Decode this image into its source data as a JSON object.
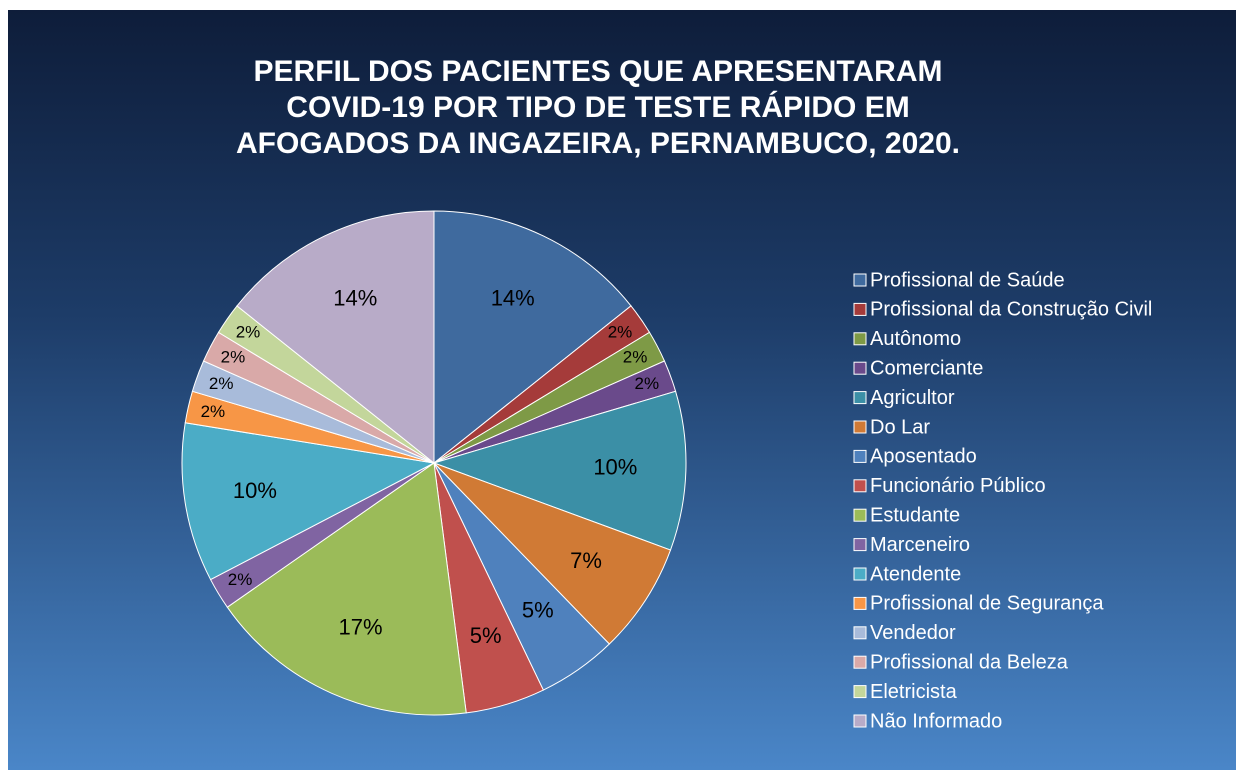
{
  "chart_data": {
    "type": "pie",
    "title": "PERFIL DOS PACIENTES QUE APRESENTARAM COVID-19 POR TIPO DE TESTE RÁPIDO EM AFOGADOS DA INGAZEIRA, PERNAMBUCO, 2020.",
    "categories": [
      "Profissional de Saúde",
      "Profissional da Construção Civil",
      "Autônomo",
      "Comerciante",
      "Agricultor",
      "Do Lar",
      "Aposentado",
      "Funcionário Público",
      "Estudante",
      "Marceneiro",
      "Atendente",
      "Profissional de Segurança",
      "Vendedor",
      "Profissional da Beleza",
      "Eletricista",
      "Não Informado"
    ],
    "values": [
      14,
      2,
      2,
      2,
      10,
      7,
      5,
      5,
      17,
      2,
      10,
      2,
      2,
      2,
      2,
      14
    ],
    "value_labels": [
      "14%",
      "2%",
      "2%",
      "2%",
      "10%",
      "7%",
      "5%",
      "5%",
      "17%",
      "2%",
      "10%",
      "2%",
      "2%",
      "2%",
      "2%",
      "14%"
    ],
    "colors": [
      "#3F6A9E",
      "#A53B3A",
      "#7E9A46",
      "#6A4A8B",
      "#3B8FA6",
      "#D07A35",
      "#4F81BD",
      "#C0504D",
      "#9BBB59",
      "#8064A2",
      "#4BACC6",
      "#F79646",
      "#A8BBDA",
      "#D9A9A8",
      "#C3D69B",
      "#B8ABC8"
    ],
    "legend": "right"
  }
}
